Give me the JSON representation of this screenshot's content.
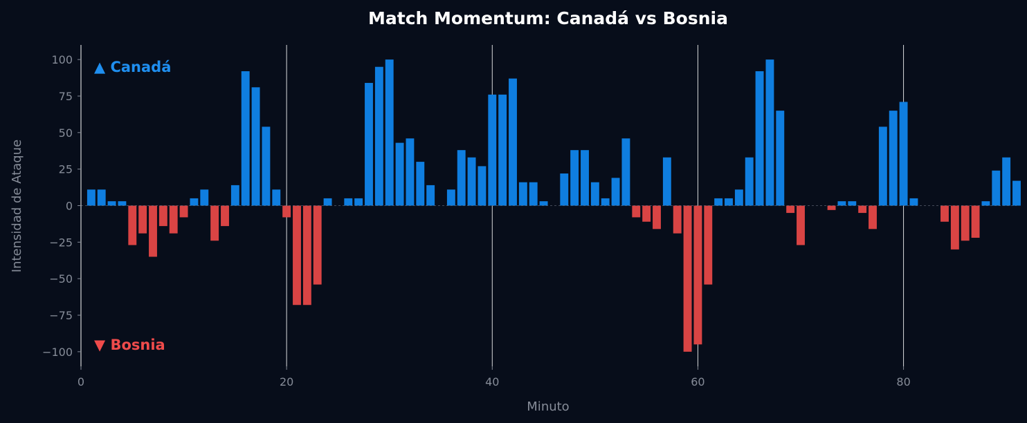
{
  "chart_data": {
    "type": "bar",
    "title": "Match Momentum: Canadá vs Bosnia",
    "xlabel": "Minuto",
    "ylabel": "Intensidad de Ataque",
    "xlim": [
      0,
      91
    ],
    "ylim": [
      -110,
      110
    ],
    "xticks": [
      0,
      20,
      40,
      60,
      80
    ],
    "yticks": [
      100,
      75,
      50,
      25,
      0,
      -25,
      -50,
      -75,
      -100
    ],
    "vlines": [
      20,
      40,
      60,
      80
    ],
    "grid": false,
    "legend_labels": [
      {
        "text": "▲ Canadá",
        "color": "#1f8ff0",
        "position": "top-left"
      },
      {
        "text": "▼ Bosnia",
        "color": "#ef4b4b",
        "position": "bottom-left"
      }
    ],
    "colors": {
      "positive": "#0f7ee0",
      "negative": "#d94444",
      "background": "#070d1a"
    },
    "x": [
      1,
      2,
      3,
      4,
      5,
      6,
      7,
      8,
      9,
      10,
      11,
      12,
      13,
      14,
      15,
      16,
      17,
      18,
      19,
      20,
      21,
      22,
      23,
      24,
      25,
      26,
      27,
      28,
      29,
      30,
      31,
      32,
      33,
      34,
      35,
      36,
      37,
      38,
      39,
      40,
      41,
      42,
      43,
      44,
      45,
      46,
      47,
      48,
      49,
      50,
      51,
      52,
      53,
      54,
      55,
      56,
      57,
      58,
      59,
      60,
      61,
      62,
      63,
      64,
      65,
      66,
      67,
      68,
      69,
      70,
      71,
      72,
      73,
      74,
      75,
      76,
      77,
      78,
      79,
      80,
      81,
      82,
      83,
      84,
      85,
      86,
      87,
      88,
      89,
      90,
      91
    ],
    "values": [
      11,
      11,
      3,
      3,
      -27,
      -19,
      -35,
      -14,
      -19,
      -8,
      5,
      11,
      -24,
      -14,
      14,
      92,
      81,
      54,
      11,
      -8,
      -68,
      -68,
      -54,
      5,
      0,
      5,
      5,
      84,
      95,
      100,
      43,
      46,
      30,
      14,
      0,
      11,
      38,
      33,
      27,
      76,
      76,
      87,
      16,
      16,
      3,
      0,
      22,
      38,
      38,
      16,
      5,
      19,
      46,
      -8,
      -11,
      -16,
      33,
      -19,
      -100,
      -95,
      -54,
      5,
      5,
      11,
      33,
      92,
      100,
      65,
      -5,
      -27,
      0,
      0,
      -3,
      3,
      3,
      -5,
      -16,
      54,
      65,
      71,
      5,
      0,
      0,
      -11,
      -30,
      -24,
      -22,
      3,
      24,
      33,
      17
    ]
  }
}
